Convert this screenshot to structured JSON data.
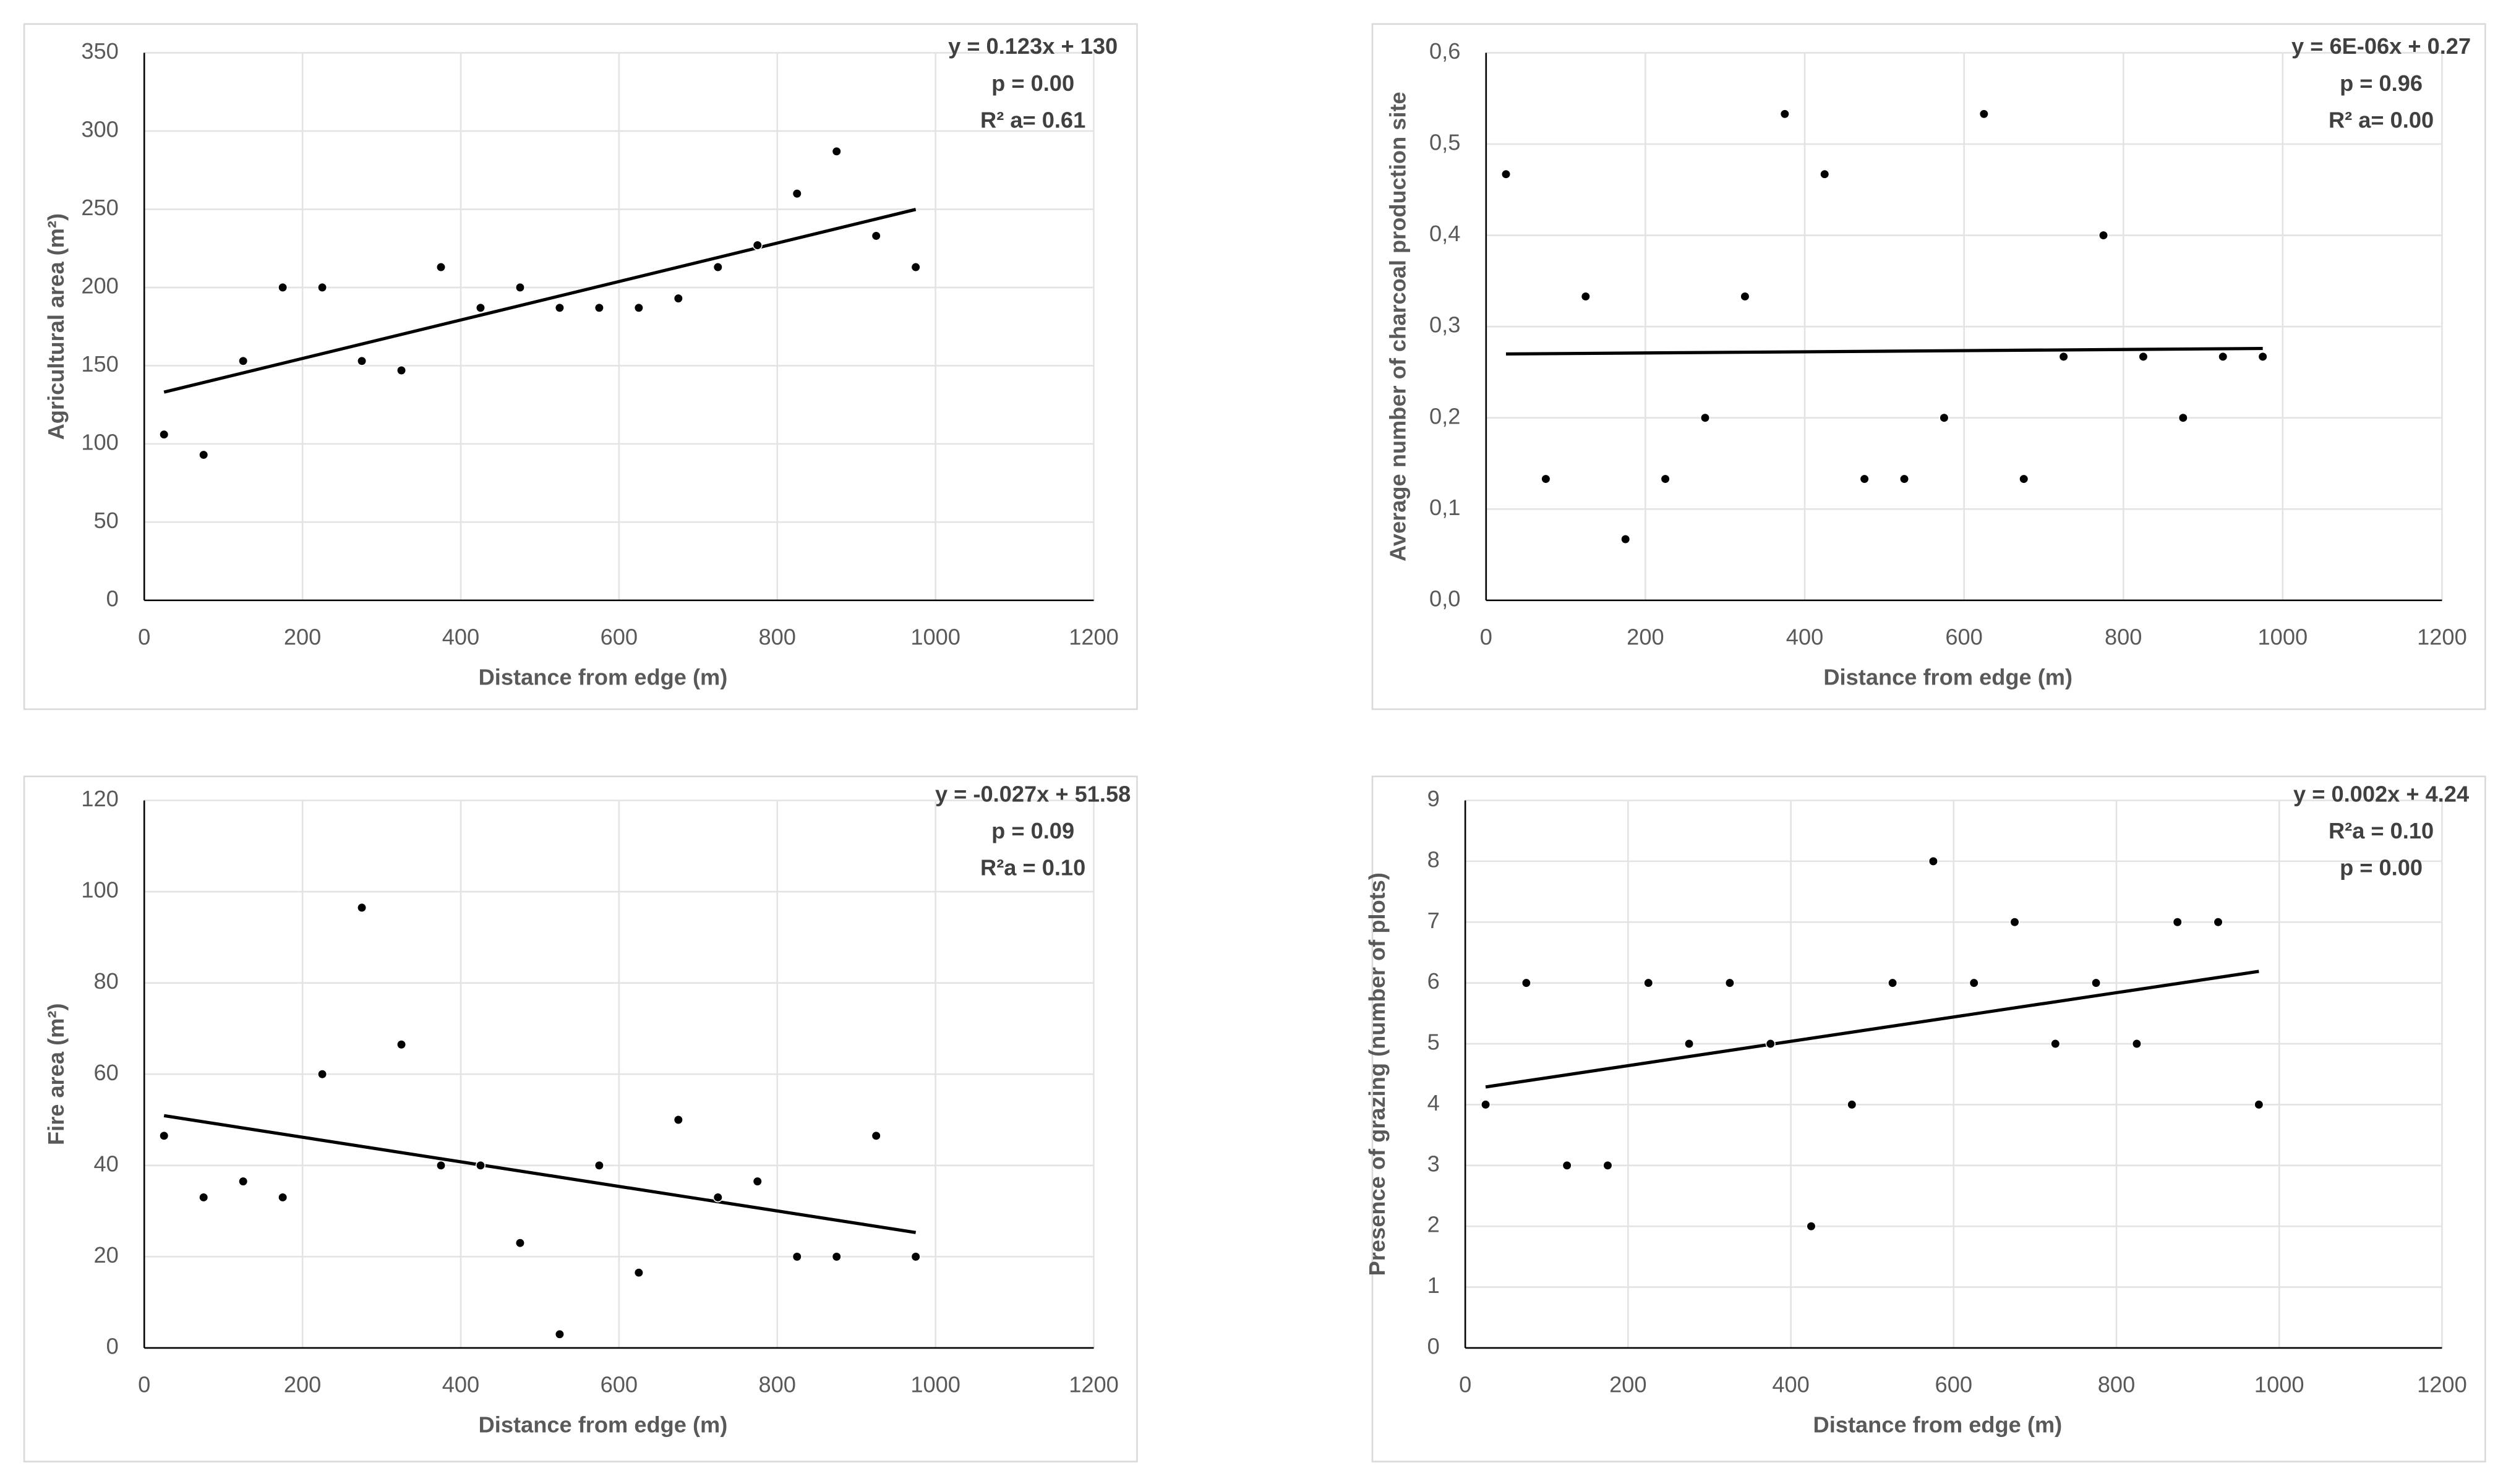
{
  "chart_data": [
    {
      "type": "scatter",
      "x_label": "Distance from edge (m)",
      "y_label": "Agricultural area (m²)",
      "x": [
        25,
        75,
        125,
        175,
        225,
        275,
        325,
        375,
        425,
        475,
        525,
        575,
        625,
        675,
        725,
        775,
        825,
        875,
        925,
        975
      ],
      "values": [
        106,
        93,
        153,
        200,
        200,
        153,
        147,
        213,
        187,
        200,
        187,
        187,
        187,
        193,
        213,
        227,
        260,
        287,
        233,
        213
      ],
      "color": "#000000",
      "trendline": {
        "x": [
          25,
          975
        ],
        "y": [
          133.1,
          249.9
        ]
      },
      "annotations": [
        "y = 0.123x + 130",
        "p = 0.00",
        "R² a= 0.61"
      ],
      "xlim": [
        0,
        1200
      ],
      "xticks": [
        0,
        200,
        400,
        600,
        800,
        1000,
        1200
      ],
      "ylim": [
        0,
        350
      ],
      "yticks": [
        0,
        50,
        100,
        150,
        200,
        250,
        300,
        350
      ],
      "grid": true
    },
    {
      "type": "scatter",
      "x_label": "Distance from edge (m)",
      "y_label": "Average number of charcoal production site",
      "x": [
        25,
        75,
        125,
        175,
        225,
        275,
        325,
        375,
        425,
        475,
        525,
        575,
        625,
        675,
        725,
        775,
        825,
        875,
        925,
        975
      ],
      "values": [
        0.467,
        0.133,
        0.333,
        0.067,
        0.133,
        0.2,
        0.333,
        0.533,
        0.467,
        0.133,
        0.133,
        0.2,
        0.533,
        0.133,
        0.267,
        0.4,
        0.267,
        0.2,
        0.267,
        0.267
      ],
      "color": "#000000",
      "trendline": {
        "x": [
          25,
          975
        ],
        "y": [
          0.27,
          0.276
        ]
      },
      "annotations": [
        "y = 6E-06x + 0.27",
        "p = 0.96",
        "R² a= 0.00"
      ],
      "xlim": [
        0,
        1200
      ],
      "xticks": [
        0,
        200,
        400,
        600,
        800,
        1000,
        1200
      ],
      "ylim": [
        0,
        0.6
      ],
      "yticks": [
        {
          "value": 0,
          "label": "0,0"
        },
        {
          "value": 0.1,
          "label": "0,1"
        },
        {
          "value": 0.2,
          "label": "0,2"
        },
        {
          "value": 0.3,
          "label": "0,3"
        },
        {
          "value": 0.4,
          "label": "0,4"
        },
        {
          "value": 0.5,
          "label": "0,5"
        },
        {
          "value": 0.6,
          "label": "0,6"
        }
      ],
      "grid": true
    },
    {
      "type": "scatter",
      "x_label": "Distance from edge (m)",
      "y_label": "Fire area (m²)",
      "x": [
        25,
        75,
        125,
        175,
        225,
        275,
        325,
        375,
        425,
        475,
        525,
        575,
        625,
        675,
        725,
        775,
        825,
        875,
        925,
        975
      ],
      "values": [
        46.5,
        33,
        36.5,
        33,
        60,
        96.5,
        66.5,
        40,
        40,
        23,
        3,
        40,
        16.5,
        50,
        33,
        36.5,
        20,
        20,
        46.5,
        20
      ],
      "color": "#000000",
      "trendline": {
        "x": [
          25,
          975
        ],
        "y": [
          50.9,
          25.3
        ]
      },
      "annotations": [
        "y = -0.027x + 51.58",
        "p = 0.09",
        "R²a = 0.10"
      ],
      "xlim": [
        0,
        1200
      ],
      "xticks": [
        0,
        200,
        400,
        600,
        800,
        1000,
        1200
      ],
      "ylim": [
        0,
        120
      ],
      "yticks": [
        0,
        20,
        40,
        60,
        80,
        100,
        120
      ],
      "grid": true
    },
    {
      "type": "scatter",
      "x_label": "Distance from edge (m)",
      "y_label": "Presence of grazing (number of plots)",
      "x": [
        25,
        75,
        125,
        175,
        225,
        275,
        325,
        375,
        425,
        475,
        525,
        575,
        625,
        675,
        725,
        775,
        825,
        875,
        925,
        975
      ],
      "values": [
        4,
        6,
        3,
        3,
        6,
        5,
        6,
        5,
        2,
        4,
        6,
        8,
        6,
        7,
        5,
        6,
        5,
        7,
        7,
        4
      ],
      "color": "#000000",
      "trendline": {
        "x": [
          25,
          975
        ],
        "y": [
          4.29,
          6.19
        ]
      },
      "annotations": [
        "y = 0.002x + 4.24",
        "R²a = 0.10",
        "p  = 0.00"
      ],
      "xlim": [
        0,
        1200
      ],
      "xticks": [
        0,
        200,
        400,
        600,
        800,
        1000,
        1200
      ],
      "ylim": [
        0,
        9
      ],
      "yticks": [
        0,
        1,
        2,
        3,
        4,
        5,
        6,
        7,
        8,
        9
      ],
      "grid": true
    }
  ]
}
